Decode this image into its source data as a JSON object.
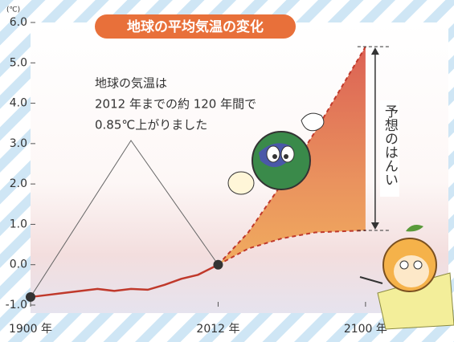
{
  "chart_data": {
    "type": "line",
    "title": "地球の平均気温の変化",
    "y_unit": "(℃)",
    "annotation": [
      "地球の気温は",
      "2012 年までの約 120 年間で",
      "0.85℃上がりました"
    ],
    "range_label": "予想のはんい",
    "xlim": [
      1900,
      2125
    ],
    "ylim": [
      -1.0,
      6.0
    ],
    "yticks": [
      {
        "value": -1,
        "label": "-1.0"
      },
      {
        "value": 0,
        "label": "0.0"
      },
      {
        "value": 1,
        "label": "1.0"
      },
      {
        "value": 2,
        "label": "2.0"
      },
      {
        "value": 3,
        "label": "3.0"
      },
      {
        "value": 4,
        "label": "4.0"
      },
      {
        "value": 5,
        "label": "5.0"
      },
      {
        "value": 6,
        "label": "6.0"
      }
    ],
    "xticks": [
      {
        "value": 1900,
        "label": "1900 年"
      },
      {
        "value": 2012,
        "label": "2012 年"
      },
      {
        "value": 2100,
        "label": "2100 年"
      }
    ],
    "series": [
      {
        "color": "#c0392b",
        "dashed": false,
        "x": [
          1900,
          1910,
          1920,
          1930,
          1940,
          1950,
          1960,
          1970,
          1980,
          1990,
          2000,
          2012
        ],
        "values": [
          -0.8,
          -0.75,
          -0.7,
          -0.65,
          -0.6,
          -0.65,
          -0.6,
          -0.62,
          -0.5,
          -0.35,
          -0.25,
          0
        ]
      },
      {
        "color": "#c0392b",
        "dashed": true,
        "x": [
          2012,
          2030,
          2050,
          2070,
          2090,
          2100
        ],
        "values": [
          0,
          0.8,
          2.0,
          3.3,
          4.7,
          5.4
        ]
      },
      {
        "color": "#c0392b",
        "dashed": true,
        "x": [
          2012,
          2030,
          2050,
          2070,
          2100
        ],
        "values": [
          0,
          0.4,
          0.65,
          0.8,
          0.85
        ]
      }
    ],
    "fill_between": [
      1,
      2
    ],
    "fill_color": "#e8743a"
  }
}
